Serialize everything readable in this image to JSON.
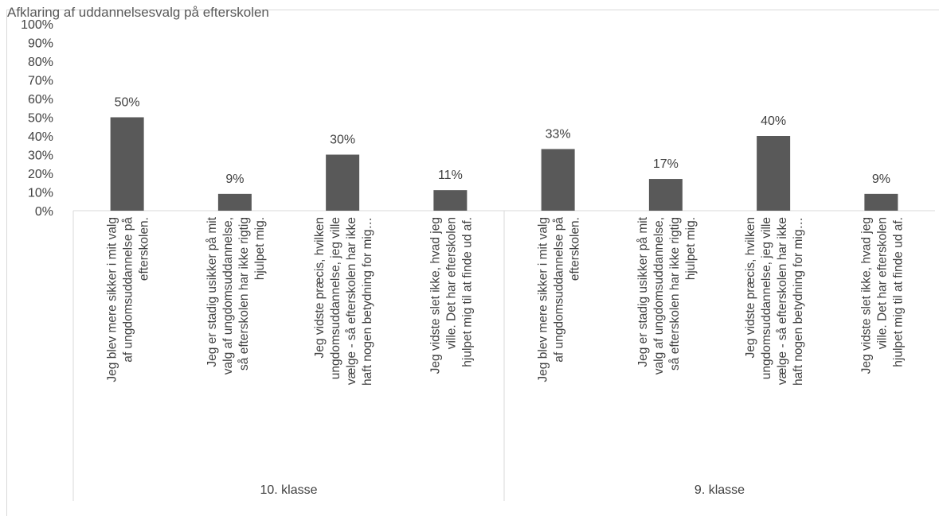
{
  "chart_data": {
    "type": "bar",
    "title": "Afklaring af uddannelsesvalg på efterskolen",
    "xlabel": "",
    "ylabel": "",
    "ylim": [
      0,
      1
    ],
    "y_ticks": [
      "0%",
      "10%",
      "20%",
      "30%",
      "40%",
      "50%",
      "60%",
      "70%",
      "80%",
      "90%",
      "100%"
    ],
    "grid": false,
    "color": "#595959",
    "groups": [
      {
        "label": "10. klasse",
        "bars": [
          {
            "lines": [
              "Jeg blev mere sikker i mit valg",
              "af ungdomsuddannelse på",
              "efterskolen."
            ],
            "value": 0.5,
            "label": "50%"
          },
          {
            "lines": [
              "Jeg er stadig usikker på mit",
              "valg af ungdomsuddannelse,",
              "så efterskolen har ikke rigtig",
              "hjulpet mig."
            ],
            "value": 0.09,
            "label": "9%"
          },
          {
            "lines": [
              "Jeg vidste præcis, hvilken",
              "ungdomsuddannelse, jeg ville",
              "vælge - så efterskolen har ikke",
              "haft nogen betydning for mig…"
            ],
            "value": 0.3,
            "label": "30%"
          },
          {
            "lines": [
              "Jeg vidste slet ikke, hvad jeg",
              "ville. Det har efterskolen",
              "hjulpet mig til at finde ud af."
            ],
            "value": 0.11,
            "label": "11%"
          }
        ]
      },
      {
        "label": "9. klasse",
        "bars": [
          {
            "lines": [
              "Jeg blev mere sikker i mit valg",
              "af ungdomsuddannelse på",
              "efterskolen."
            ],
            "value": 0.33,
            "label": "33%"
          },
          {
            "lines": [
              "Jeg er stadig usikker på mit",
              "valg af ungdomsuddannelse,",
              "så efterskolen har ikke rigtig",
              "hjulpet mig."
            ],
            "value": 0.17,
            "label": "17%"
          },
          {
            "lines": [
              "Jeg vidste præcis, hvilken",
              "ungdomsuddannelse, jeg ville",
              "vælge - så efterskolen har ikke",
              "haft nogen betydning for mig…"
            ],
            "value": 0.4,
            "label": "40%"
          },
          {
            "lines": [
              "Jeg vidste slet ikke, hvad jeg",
              "ville. Det har efterskolen",
              "hjulpet mig til at finde ud af."
            ],
            "value": 0.09,
            "label": "9%"
          }
        ]
      }
    ]
  }
}
